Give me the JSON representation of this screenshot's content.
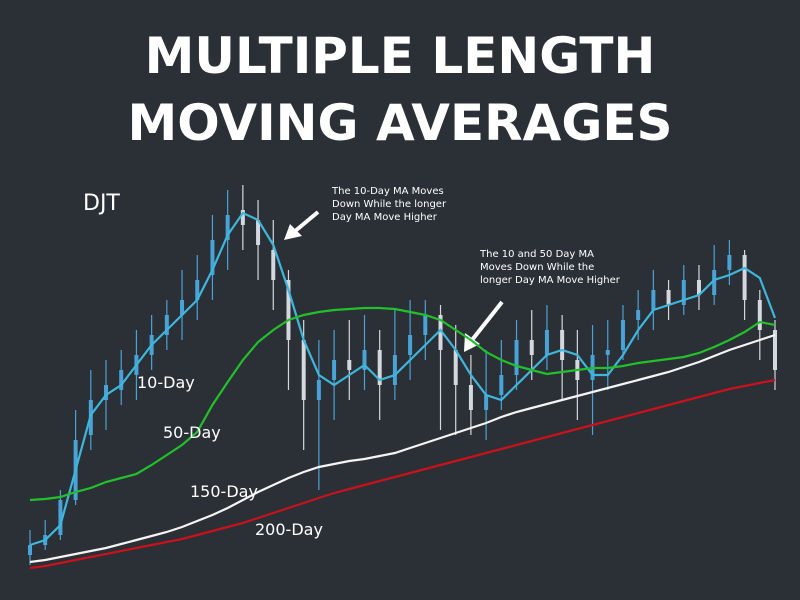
{
  "chart_data": {
    "type": "candlestick",
    "title": [
      "MULTIPLE LENGTH",
      "MOVING AVERAGES"
    ],
    "symbol": "DJT",
    "annotations": [
      [
        "The 10-Day MA Moves",
        "Down While the longer",
        "Day MA Move Higher"
      ],
      [
        "The 10 and 50 Day MA",
        "Moves Down While the",
        "longer Day MA Move Higher"
      ]
    ],
    "categories": [
      null,
      null,
      null,
      null,
      null,
      null,
      null,
      null,
      null,
      null,
      null,
      null,
      null,
      null,
      null,
      null,
      null,
      null,
      null,
      null,
      null,
      null,
      null,
      null,
      null,
      null,
      null,
      null,
      null,
      null,
      null,
      null,
      null,
      null,
      null,
      null,
      null,
      null,
      null,
      null,
      null,
      null,
      null,
      null,
      null,
      null,
      null,
      null,
      null,
      null
    ],
    "ylim": [
      20,
      420
    ],
    "candles": {
      "up_color": "#4aa3d6",
      "down_color": "#d4d8de",
      "open": [
        45,
        55,
        65,
        100,
        165,
        200,
        210,
        225,
        245,
        265,
        285,
        300,
        325,
        360,
        390,
        380,
        350,
        320,
        260,
        200,
        220,
        240,
        230,
        250,
        215,
        245,
        265,
        285,
        250,
        215,
        190,
        205,
        225,
        260,
        245,
        270,
        240,
        220,
        245,
        250,
        280,
        290,
        310,
        295,
        320,
        305,
        330,
        345,
        300,
        270
      ],
      "close": [
        55,
        65,
        100,
        160,
        200,
        215,
        230,
        245,
        265,
        285,
        300,
        320,
        360,
        385,
        375,
        355,
        320,
        260,
        200,
        220,
        240,
        230,
        250,
        215,
        245,
        265,
        285,
        250,
        215,
        190,
        205,
        225,
        260,
        245,
        270,
        240,
        220,
        245,
        250,
        280,
        290,
        310,
        295,
        320,
        305,
        330,
        345,
        300,
        270,
        230
      ],
      "high": [
        70,
        80,
        110,
        190,
        230,
        240,
        250,
        270,
        285,
        300,
        330,
        345,
        385,
        410,
        415,
        400,
        380,
        330,
        280,
        260,
        270,
        280,
        285,
        270,
        290,
        300,
        300,
        295,
        275,
        245,
        250,
        260,
        280,
        290,
        295,
        285,
        270,
        275,
        280,
        295,
        310,
        330,
        320,
        335,
        335,
        355,
        360,
        350,
        310,
        280
      ],
      "low": [
        35,
        50,
        60,
        95,
        150,
        170,
        195,
        200,
        230,
        250,
        260,
        280,
        300,
        330,
        350,
        320,
        290,
        210,
        150,
        110,
        180,
        200,
        210,
        180,
        200,
        220,
        240,
        170,
        165,
        165,
        160,
        190,
        210,
        220,
        230,
        200,
        180,
        165,
        210,
        240,
        260,
        270,
        280,
        285,
        290,
        295,
        315,
        280,
        240,
        210
      ]
    },
    "series": [
      {
        "name": "10-Day",
        "color": "#3fb6dc",
        "values": [
          55,
          60,
          75,
          130,
          185,
          205,
          215,
          235,
          255,
          270,
          285,
          300,
          330,
          365,
          387,
          380,
          355,
          310,
          260,
          225,
          215,
          225,
          235,
          220,
          225,
          240,
          255,
          270,
          250,
          225,
          205,
          200,
          215,
          230,
          245,
          250,
          245,
          225,
          225,
          245,
          270,
          290,
          295,
          300,
          305,
          320,
          325,
          332,
          322,
          282
        ]
      },
      {
        "name": "50-Day",
        "color": "#22c02a",
        "values": [
          100,
          101,
          103,
          108,
          112,
          118,
          122,
          126,
          135,
          145,
          155,
          168,
          195,
          218,
          240,
          258,
          270,
          280,
          285,
          288,
          290,
          291,
          292,
          292,
          291,
          288,
          285,
          280,
          270,
          260,
          248,
          240,
          234,
          230,
          226,
          228,
          230,
          232,
          232,
          234,
          237,
          239,
          241,
          243,
          247,
          253,
          260,
          268,
          278,
          275
        ]
      },
      {
        "name": "150-Day",
        "color": "#f4f4f4",
        "values": [
          38,
          40,
          43,
          46,
          49,
          52,
          56,
          60,
          64,
          68,
          73,
          79,
          85,
          92,
          100,
          108,
          115,
          122,
          128,
          133,
          136,
          139,
          141,
          144,
          147,
          152,
          157,
          162,
          167,
          172,
          177,
          183,
          188,
          192,
          196,
          200,
          204,
          208,
          212,
          216,
          220,
          224,
          228,
          233,
          238,
          244,
          250,
          255,
          260,
          265
        ]
      },
      {
        "name": "200-Day",
        "color": "#c8121c",
        "values": [
          32,
          34,
          37,
          40,
          43,
          46,
          49,
          52,
          55,
          58,
          61,
          65,
          69,
          73,
          77,
          82,
          87,
          92,
          97,
          102,
          107,
          111,
          115,
          119,
          123,
          127,
          131,
          135,
          139,
          143,
          147,
          151,
          155,
          159,
          163,
          167,
          171,
          175,
          179,
          183,
          187,
          191,
          195,
          199,
          203,
          207,
          211,
          214,
          217,
          220
        ]
      }
    ]
  }
}
